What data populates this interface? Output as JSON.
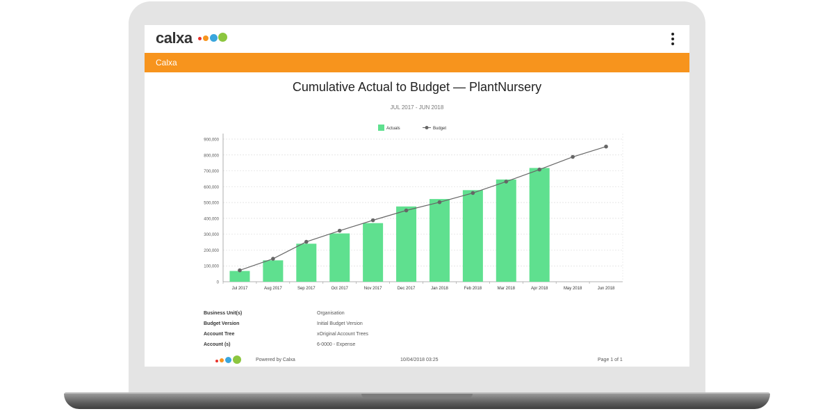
{
  "app": {
    "logo_text": "calxa",
    "section_title": "Calxa",
    "brand_colors": [
      "#f7941d",
      "#e8312b",
      "#3aa6dd",
      "#8cc63f"
    ],
    "menu_icon": "kebab-menu-icon"
  },
  "report": {
    "title": "Cumulative Actual to Budget — PlantNursery",
    "subtitle": "JUL 2017 - JUN 2018"
  },
  "chart_data": {
    "type": "bar",
    "categories": [
      "Jul 2017",
      "Aug 2017",
      "Sep 2017",
      "Oct 2017",
      "Nov 2017",
      "Dec 2017",
      "Jan 2018",
      "Feb 2018",
      "Mar 2018",
      "Apr 2018",
      "May 2018",
      "Jun 2018"
    ],
    "series": [
      {
        "name": "Actuals",
        "type": "bar",
        "color": "#5fe08f",
        "values": [
          68000,
          135000,
          240000,
          305000,
          370000,
          475000,
          522000,
          578000,
          645000,
          718000,
          null,
          null
        ]
      },
      {
        "name": "Budget",
        "type": "line",
        "color": "#666666",
        "values": [
          72000,
          145000,
          252000,
          322000,
          388000,
          450000,
          502000,
          560000,
          632000,
          708000,
          788000,
          853000
        ]
      }
    ],
    "y_ticks": [
      "0",
      "100,000",
      "200,000",
      "300,000",
      "400,000",
      "500,000",
      "600,000",
      "700,000",
      "800,000",
      "900,000"
    ],
    "ylim": [
      0,
      900000
    ],
    "grid": true,
    "legend": "top-center"
  },
  "details": [
    {
      "label": "Business Unit(s)",
      "value": "Organisation"
    },
    {
      "label": "Budget Version",
      "value": "Initial Budget Version"
    },
    {
      "label": "Account Tree",
      "value": "xOriginal Account Trees"
    },
    {
      "label": "Account (s)",
      "value": "6-0000 - Expense"
    }
  ],
  "footer": {
    "powered_by": "Powered by Calxa",
    "timestamp": "10/04/2018 03:25",
    "page": "Page 1 of 1"
  }
}
